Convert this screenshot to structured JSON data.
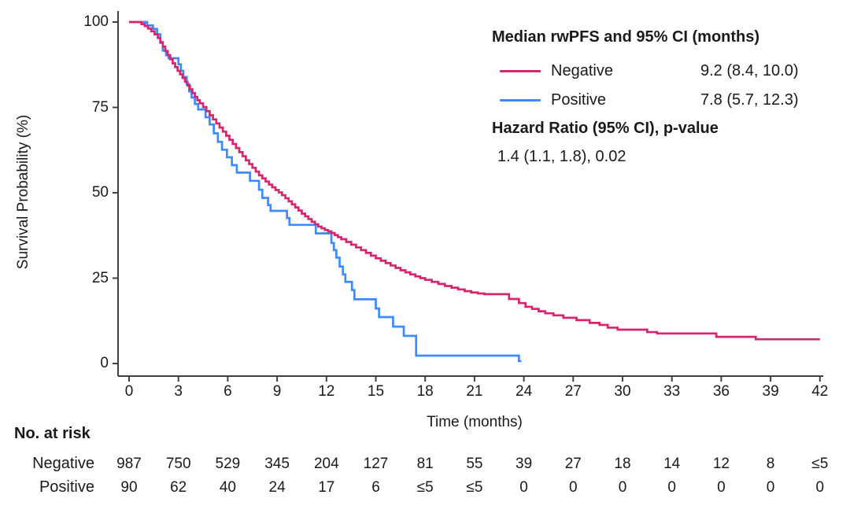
{
  "figure": {
    "y_axis_label": "Survival Probability (%)",
    "x_axis_label": "Time (months)",
    "legend_header": "Median rwPFS and 95% CI (months)",
    "hazard_header": "Hazard Ratio (95% CI), p-value",
    "hazard_value": "1.4 (1.1, 1.8), 0.02",
    "risk_table_title": "No. at risk"
  },
  "chart_data": {
    "type": "line",
    "subtype": "kaplan-meier-step",
    "xlabel": "Time (months)",
    "ylabel": "Survival Probability (%)",
    "xlim": [
      0,
      42
    ],
    "ylim": [
      0,
      100
    ],
    "xticks": [
      0,
      3,
      6,
      9,
      12,
      15,
      18,
      21,
      24,
      27,
      30,
      33,
      36,
      39,
      42
    ],
    "yticks": [
      0,
      25,
      50,
      75,
      100
    ],
    "grid": false,
    "legend_position": "top-right",
    "legend_header": "Median rwPFS and 95% CI (months)",
    "hazard_annotation": {
      "header": "Hazard Ratio (95% CI), p-value",
      "value": "1.4 (1.1, 1.8), 0.02"
    },
    "series": [
      {
        "name": "Positive",
        "median_ci": "7.8 (5.7, 12.3)",
        "color": "#3D8BFD",
        "points": [
          [
            0,
            100
          ],
          [
            1.1,
            99.0
          ],
          [
            1.45,
            98.0
          ],
          [
            1.7,
            96.4
          ],
          [
            1.9,
            93.9
          ],
          [
            2.05,
            91.6
          ],
          [
            2.25,
            90.3
          ],
          [
            2.4,
            89.4
          ],
          [
            3.0,
            87.6
          ],
          [
            3.15,
            85.7
          ],
          [
            3.3,
            83.9
          ],
          [
            3.5,
            81.8
          ],
          [
            3.65,
            79.7
          ],
          [
            3.8,
            77.9
          ],
          [
            4.0,
            76.0
          ],
          [
            4.2,
            74.4
          ],
          [
            4.65,
            72.1
          ],
          [
            4.9,
            70.0
          ],
          [
            5.15,
            67.4
          ],
          [
            5.4,
            64.9
          ],
          [
            5.65,
            62.6
          ],
          [
            5.95,
            60.4
          ],
          [
            6.25,
            58.1
          ],
          [
            6.55,
            55.9
          ],
          [
            7.35,
            53.5
          ],
          [
            7.9,
            50.9
          ],
          [
            8.1,
            48.5
          ],
          [
            8.45,
            46.4
          ],
          [
            8.6,
            44.7
          ],
          [
            9.6,
            42.6
          ],
          [
            9.75,
            40.6
          ],
          [
            11.35,
            38.1
          ],
          [
            12.3,
            35.3
          ],
          [
            12.45,
            33.2
          ],
          [
            12.6,
            31.0
          ],
          [
            12.8,
            28.4
          ],
          [
            13.0,
            26.1
          ],
          [
            13.15,
            23.9
          ],
          [
            13.55,
            21.5
          ],
          [
            13.7,
            18.8
          ],
          [
            15.0,
            16.1
          ],
          [
            15.2,
            13.6
          ],
          [
            16.05,
            10.8
          ],
          [
            16.7,
            8.1
          ],
          [
            17.45,
            2.3
          ],
          [
            23.7,
            0.7
          ],
          [
            23.85,
            0.7
          ]
        ]
      },
      {
        "name": "Negative",
        "median_ci": "9.2 (8.4, 10.0)",
        "color": "#D6246E",
        "points": [
          [
            0,
            100
          ],
          [
            0.75,
            99.4
          ],
          [
            0.95,
            98.8
          ],
          [
            1.15,
            98.1
          ],
          [
            1.35,
            97.3
          ],
          [
            1.55,
            96.4
          ],
          [
            1.75,
            95.3
          ],
          [
            1.9,
            94.1
          ],
          [
            2.05,
            92.8
          ],
          [
            2.2,
            91.5
          ],
          [
            2.35,
            90.3
          ],
          [
            2.5,
            89.1
          ],
          [
            2.65,
            87.9
          ],
          [
            2.8,
            86.8
          ],
          [
            2.95,
            85.7
          ],
          [
            3.1,
            84.7
          ],
          [
            3.25,
            83.6
          ],
          [
            3.4,
            82.5
          ],
          [
            3.55,
            81.4
          ],
          [
            3.7,
            80.3
          ],
          [
            3.85,
            79.2
          ],
          [
            4.0,
            78.1
          ],
          [
            4.15,
            77.1
          ],
          [
            4.3,
            76.2
          ],
          [
            4.5,
            75.1
          ],
          [
            4.7,
            73.9
          ],
          [
            4.9,
            72.7
          ],
          [
            5.1,
            71.5
          ],
          [
            5.3,
            70.3
          ],
          [
            5.5,
            69.1
          ],
          [
            5.7,
            67.9
          ],
          [
            5.9,
            66.7
          ],
          [
            6.1,
            65.5
          ],
          [
            6.3,
            64.3
          ],
          [
            6.5,
            63.1
          ],
          [
            6.7,
            61.9
          ],
          [
            6.9,
            60.7
          ],
          [
            7.1,
            59.5
          ],
          [
            7.3,
            58.4
          ],
          [
            7.5,
            57.3
          ],
          [
            7.7,
            56.2
          ],
          [
            7.9,
            55.1
          ],
          [
            8.1,
            54.2
          ],
          [
            8.3,
            53.3
          ],
          [
            8.5,
            52.4
          ],
          [
            8.7,
            51.6
          ],
          [
            8.9,
            50.8
          ],
          [
            9.1,
            50.1
          ],
          [
            9.3,
            49.3
          ],
          [
            9.5,
            48.4
          ],
          [
            9.7,
            47.5
          ],
          [
            9.9,
            46.6
          ],
          [
            10.1,
            45.7
          ],
          [
            10.3,
            44.8
          ],
          [
            10.5,
            43.9
          ],
          [
            10.7,
            43.1
          ],
          [
            10.9,
            42.3
          ],
          [
            11.1,
            41.5
          ],
          [
            11.3,
            40.8
          ],
          [
            11.5,
            40.1
          ],
          [
            11.7,
            39.6
          ],
          [
            11.9,
            39.1
          ],
          [
            12.1,
            38.7
          ],
          [
            12.3,
            38.2
          ],
          [
            12.5,
            37.6
          ],
          [
            12.7,
            37.0
          ],
          [
            12.9,
            36.4
          ],
          [
            13.2,
            35.6
          ],
          [
            13.5,
            34.8
          ],
          [
            13.8,
            34.0
          ],
          [
            14.1,
            33.2
          ],
          [
            14.4,
            32.4
          ],
          [
            14.7,
            31.6
          ],
          [
            15.0,
            30.8
          ],
          [
            15.3,
            30.1
          ],
          [
            15.6,
            29.4
          ],
          [
            15.9,
            28.7
          ],
          [
            16.2,
            28.0
          ],
          [
            16.5,
            27.3
          ],
          [
            16.8,
            26.7
          ],
          [
            17.1,
            26.1
          ],
          [
            17.4,
            25.5
          ],
          [
            17.7,
            25.0
          ],
          [
            18.0,
            24.5
          ],
          [
            18.4,
            23.9
          ],
          [
            18.8,
            23.3
          ],
          [
            19.2,
            22.7
          ],
          [
            19.6,
            22.2
          ],
          [
            20.0,
            21.7
          ],
          [
            20.4,
            21.2
          ],
          [
            20.8,
            20.8
          ],
          [
            21.2,
            20.5
          ],
          [
            21.6,
            20.3
          ],
          [
            23.1,
            18.9
          ],
          [
            23.7,
            17.7
          ],
          [
            24.1,
            16.6
          ],
          [
            24.5,
            16.0
          ],
          [
            24.9,
            15.3
          ],
          [
            25.3,
            14.7
          ],
          [
            25.8,
            14.1
          ],
          [
            26.4,
            13.4
          ],
          [
            27.2,
            12.7
          ],
          [
            28.0,
            11.9
          ],
          [
            28.6,
            11.3
          ],
          [
            29.1,
            10.5
          ],
          [
            29.7,
            9.9
          ],
          [
            31.5,
            9.2
          ],
          [
            32.1,
            8.8
          ],
          [
            35.7,
            7.8
          ],
          [
            38.1,
            7.1
          ],
          [
            42.0,
            7.1
          ]
        ]
      }
    ],
    "risk_table": {
      "title": "No. at risk",
      "times": [
        0,
        3,
        6,
        9,
        12,
        15,
        18,
        21,
        24,
        27,
        30,
        33,
        36,
        39,
        42
      ],
      "rows": [
        {
          "name": "Negative",
          "values": [
            "987",
            "750",
            "529",
            "345",
            "204",
            "127",
            "81",
            "55",
            "39",
            "27",
            "18",
            "14",
            "12",
            "8",
            "≤5"
          ]
        },
        {
          "name": "Positive",
          "values": [
            "90",
            "62",
            "40",
            "24",
            "17",
            "6",
            "≤5",
            "≤5",
            "0",
            "0",
            "0",
            "0",
            "0",
            "0",
            "0"
          ]
        }
      ]
    },
    "colors": {
      "negative": "#D6246E",
      "positive": "#3D8BFD",
      "axis": "#404040",
      "text": "#1a1a1a"
    }
  }
}
